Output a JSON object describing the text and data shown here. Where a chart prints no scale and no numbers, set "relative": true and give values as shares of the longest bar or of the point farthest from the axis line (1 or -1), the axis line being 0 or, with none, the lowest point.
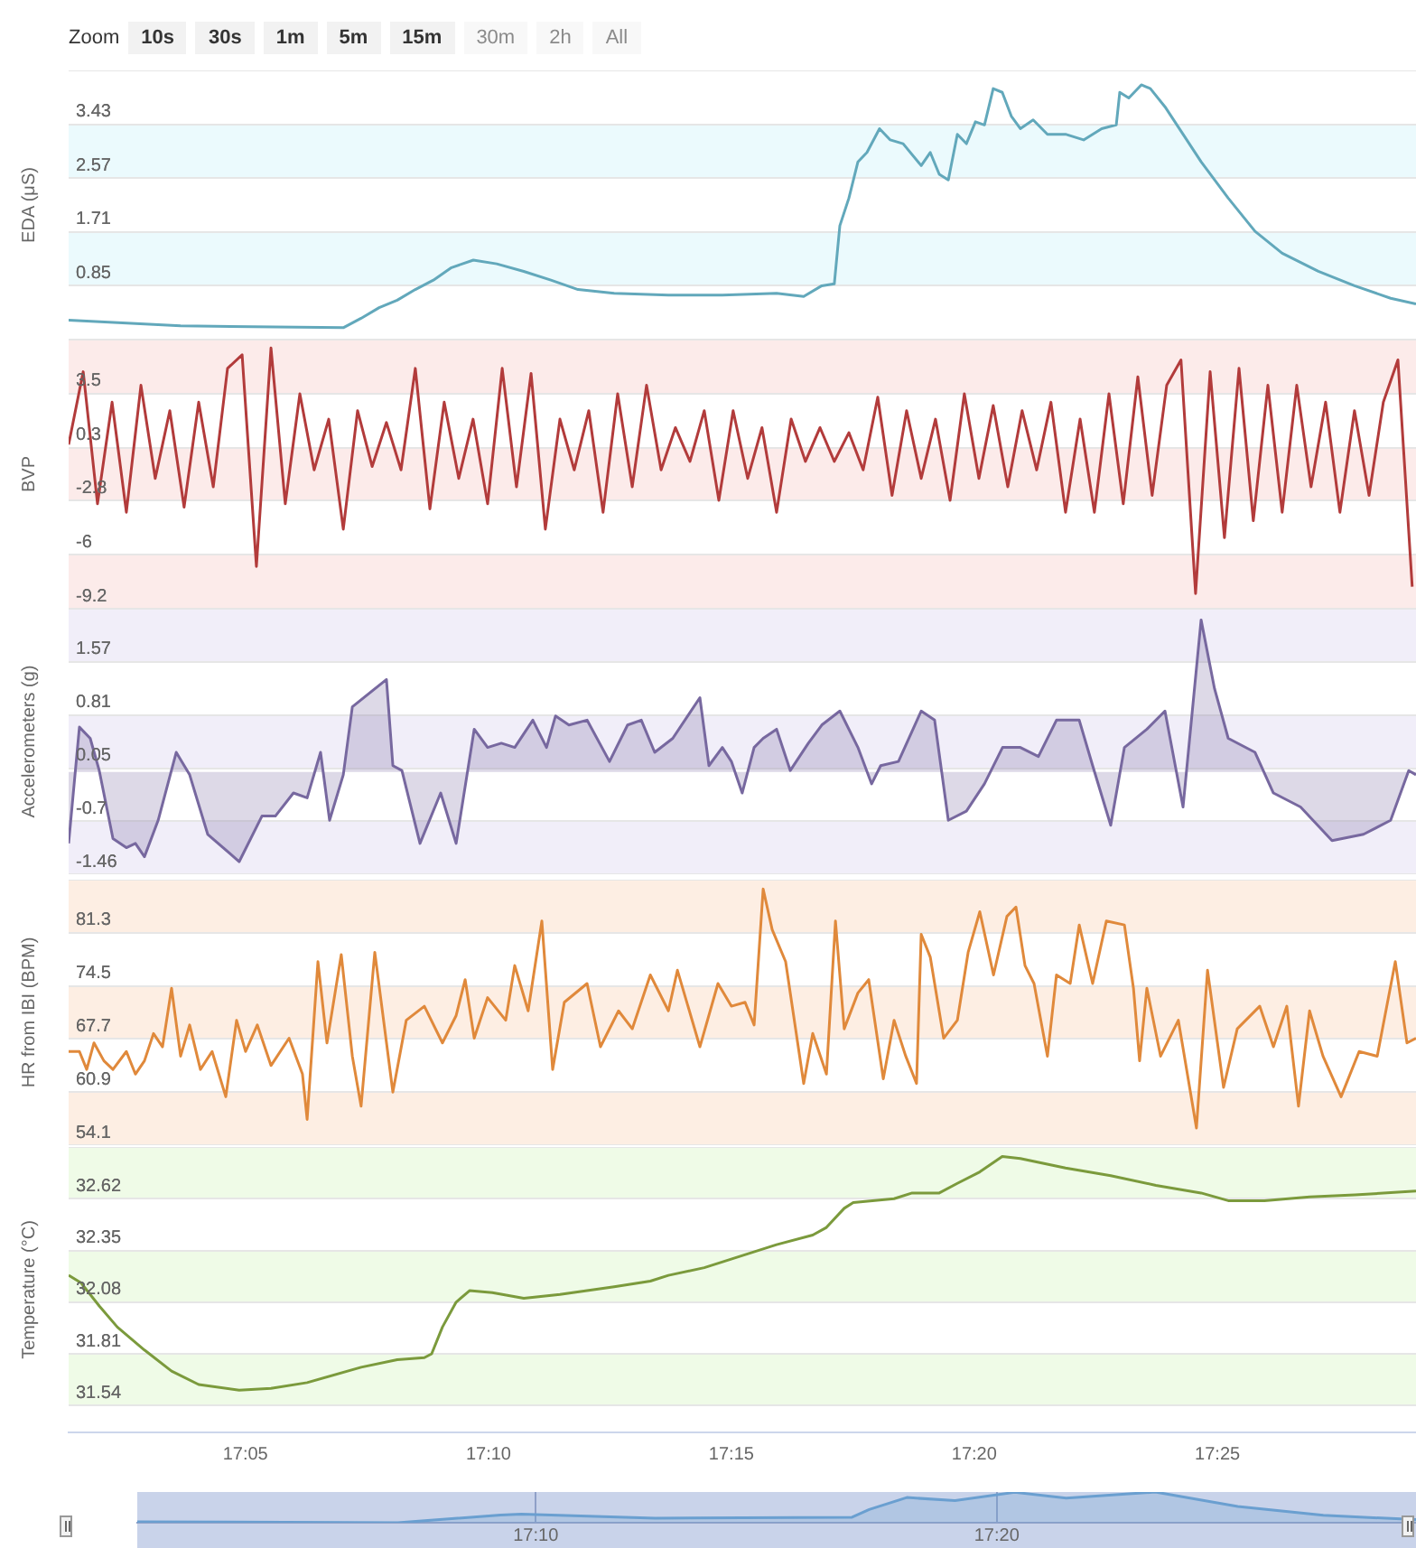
{
  "chart_data": [
    {
      "type": "line",
      "ylabel": "EDA (μS)",
      "annotations": [
        "Zoom",
        "10s",
        "30s",
        "1m",
        "5m",
        "15m",
        "30m",
        "2h",
        "All"
      ],
      "color": "#62a8bb",
      "marker": "none",
      "grid": "y",
      "tick_labels": "y",
      "xlim": [
        17.0227,
        17.4848
      ],
      "ylim": [
        -0.01,
        4.29
      ],
      "yticks": [
        {
          "value": -0.01,
          "label": null
        },
        0.85,
        1.71,
        2.57,
        3.43,
        {
          "value": 4.29,
          "label": null
        }
      ],
      "bands": [
        {
          "axis": "y",
          "from": 0.85,
          "to": 1.71,
          "color": "#ebfafd"
        },
        {
          "axis": "y",
          "from": 2.57,
          "to": 3.43,
          "color": "#ebfafd"
        }
      ],
      "x": [
        17.0227,
        17.0611,
        17.1169,
        17.123,
        17.1292,
        17.1354,
        17.1416,
        17.1478,
        17.154,
        17.1615,
        17.1695,
        17.1788,
        17.1881,
        17.1974,
        17.2098,
        17.2284,
        17.2469,
        17.2655,
        17.2748,
        17.281,
        17.2853,
        17.2872,
        17.2903,
        17.2934,
        17.2965,
        17.3008,
        17.3045,
        17.3089,
        17.3151,
        17.3182,
        17.3213,
        17.3244,
        17.3275,
        17.3306,
        17.3337,
        17.3368,
        17.3398,
        17.3429,
        17.346,
        17.3491,
        17.3535,
        17.3584,
        17.3646,
        17.3708,
        17.377,
        17.382,
        17.3832,
        17.3863,
        17.3906,
        17.3937,
        17.3987,
        17.4049,
        17.4111,
        17.4204,
        17.4296,
        17.4389,
        17.4513,
        17.4637,
        17.4761,
        17.4848
      ],
      "values": [
        0.3,
        0.21,
        0.18,
        0.33,
        0.5,
        0.62,
        0.79,
        0.94,
        1.14,
        1.26,
        1.2,
        1.08,
        0.94,
        0.79,
        0.73,
        0.7,
        0.7,
        0.73,
        0.68,
        0.85,
        0.88,
        1.81,
        2.25,
        2.83,
        2.98,
        3.36,
        3.18,
        3.12,
        2.77,
        2.98,
        2.63,
        2.54,
        3.27,
        3.12,
        3.47,
        3.42,
        4.0,
        3.94,
        3.56,
        3.36,
        3.5,
        3.27,
        3.27,
        3.18,
        3.36,
        3.42,
        3.94,
        3.85,
        4.06,
        4.0,
        3.71,
        3.27,
        2.83,
        2.25,
        1.72,
        1.37,
        1.08,
        0.85,
        0.65,
        0.56
      ]
    },
    {
      "type": "line",
      "ylabel": "BVP",
      "color": "#b23b3b",
      "marker": "none",
      "grid": "y",
      "tick_labels": "y",
      "xlim": [
        17.0227,
        17.4848
      ],
      "ylim": [
        -9.2,
        6.7
      ],
      "yticks": [
        -9.2,
        -6,
        -2.8,
        0.3,
        3.5,
        {
          "value": 6.7,
          "label": null
        }
      ],
      "bands": [
        {
          "axis": "y",
          "from": 3.5,
          "to": 6.7,
          "color": "#fcebea"
        },
        {
          "axis": "y",
          "from": -2.8,
          "to": 0.3,
          "color": "#fcebea"
        },
        {
          "axis": "y",
          "from": -9.2,
          "to": -6,
          "color": "#fcebea"
        }
      ],
      "x": [
        17.0227,
        17.0277,
        17.0326,
        17.0376,
        17.0425,
        17.0475,
        17.0524,
        17.0574,
        17.0623,
        17.0673,
        17.0723,
        17.0772,
        17.0822,
        17.0871,
        17.0921,
        17.097,
        17.102,
        17.1069,
        17.1119,
        17.1169,
        17.1218,
        17.1268,
        17.1317,
        17.1367,
        17.1416,
        17.1466,
        17.1515,
        17.1565,
        17.1614,
        17.1664,
        17.1714,
        17.1763,
        17.1813,
        17.1862,
        17.1912,
        17.1961,
        17.2011,
        17.206,
        17.211,
        17.216,
        17.2209,
        17.2259,
        17.2308,
        17.2358,
        17.2407,
        17.2457,
        17.2506,
        17.2556,
        17.2605,
        17.2655,
        17.2705,
        17.2754,
        17.2804,
        17.2853,
        17.2903,
        17.2952,
        17.3002,
        17.3051,
        17.3101,
        17.3151,
        17.32,
        17.325,
        17.3299,
        17.3349,
        17.3398,
        17.3448,
        17.3497,
        17.3547,
        17.3596,
        17.3646,
        17.3696,
        17.3745,
        17.3795,
        17.3844,
        17.3894,
        17.3943,
        17.3993,
        17.4042,
        17.4092,
        17.4142,
        17.4191,
        17.4241,
        17.429,
        17.434,
        17.4389,
        17.4439,
        17.4488,
        17.4538,
        17.4587,
        17.4637,
        17.4687,
        17.4736,
        17.4786,
        17.4835
      ],
      "values": [
        0.5,
        4.8,
        -3.0,
        3.0,
        -3.5,
        4.0,
        -1.5,
        2.5,
        -3.2,
        3.0,
        -2.0,
        5.0,
        5.8,
        -6.7,
        6.2,
        -3.0,
        3.5,
        -1.0,
        2.0,
        -4.5,
        2.5,
        -0.8,
        1.8,
        -1.0,
        5.0,
        -3.3,
        3.0,
        -1.5,
        2.0,
        -3.0,
        5.0,
        -2.0,
        4.7,
        -4.5,
        2.0,
        -1.0,
        2.5,
        -3.5,
        3.5,
        -2.0,
        4.0,
        -1.0,
        1.5,
        -0.5,
        2.5,
        -2.8,
        2.5,
        -1.5,
        1.5,
        -3.5,
        2.0,
        -0.5,
        1.5,
        -0.5,
        1.2,
        -1.0,
        3.3,
        -2.5,
        2.5,
        -1.5,
        2.0,
        -2.8,
        3.5,
        -1.5,
        2.8,
        -2.0,
        2.5,
        -1.0,
        3.0,
        -3.5,
        2.0,
        -3.5,
        3.5,
        -3.0,
        4.5,
        -2.5,
        4.0,
        5.5,
        -8.3,
        4.8,
        -5.0,
        5.0,
        -4.0,
        4.0,
        -3.5,
        4.0,
        -2.0,
        3.0,
        -3.5,
        2.5,
        -2.5,
        3.0,
        5.5,
        -7.9
      ]
    },
    {
      "type": "area",
      "ylabel": "Accelerometers (g)",
      "color": "#77689f",
      "marker": "none",
      "grid": "y",
      "tick_labels": "y",
      "xlim": [
        17.0227,
        17.4848
      ],
      "ylim": [
        -1.46,
        2.33
      ],
      "yticks": [
        -1.46,
        -0.7,
        0.05,
        0.81,
        1.57,
        {
          "value": 2.33,
          "label": null
        }
      ],
      "bands": [
        {
          "axis": "y",
          "from": 1.57,
          "to": 2.33,
          "color": "#f1eef9"
        },
        {
          "axis": "y",
          "from": 0.05,
          "to": 0.81,
          "color": "#f1eef9"
        },
        {
          "axis": "y",
          "from": -1.46,
          "to": -0.7,
          "color": "#f1eef9"
        }
      ],
      "x": [
        17.0227,
        17.0264,
        17.0301,
        17.0332,
        17.0379,
        17.0425,
        17.0456,
        17.0487,
        17.0534,
        17.0596,
        17.0642,
        17.0704,
        17.0812,
        17.089,
        17.0936,
        17.0998,
        17.1045,
        17.1091,
        17.1122,
        17.1169,
        17.12,
        17.1317,
        17.1339,
        17.137,
        17.1432,
        17.1503,
        17.1556,
        17.1618,
        17.1664,
        17.1711,
        17.1757,
        17.1819,
        17.1866,
        17.1897,
        17.1943,
        17.2005,
        17.2082,
        17.2144,
        17.2191,
        17.2237,
        17.2299,
        17.2392,
        17.2423,
        17.2469,
        17.25,
        17.2537,
        17.2578,
        17.2609,
        17.2655,
        17.2702,
        17.2764,
        17.281,
        17.2872,
        17.2934,
        17.2981,
        17.3012,
        17.3073,
        17.3151,
        17.3197,
        17.3244,
        17.3306,
        17.3368,
        17.343,
        17.3491,
        17.3553,
        17.3615,
        17.3693,
        17.3739,
        17.3801,
        17.3848,
        17.3925,
        17.3987,
        17.4049,
        17.4111,
        17.4157,
        17.4204,
        17.4296,
        17.4359,
        17.4452,
        17.456,
        17.4668,
        17.4761,
        17.4823,
        17.4848
      ],
      "values": [
        -1.02,
        0.64,
        0.48,
        0.02,
        -0.95,
        -1.08,
        -1.02,
        -1.21,
        -0.69,
        0.28,
        -0.04,
        -0.89,
        -1.28,
        -0.63,
        -0.63,
        -0.3,
        -0.37,
        0.28,
        -0.69,
        -0.04,
        0.93,
        1.32,
        0.09,
        0.02,
        -1.02,
        -0.3,
        -1.02,
        0.61,
        0.35,
        0.41,
        0.35,
        0.74,
        0.35,
        0.8,
        0.67,
        0.74,
        0.15,
        0.67,
        0.74,
        0.28,
        0.48,
        1.06,
        0.09,
        0.35,
        0.15,
        -0.3,
        0.35,
        0.48,
        0.61,
        0.02,
        0.41,
        0.67,
        0.87,
        0.35,
        -0.17,
        0.09,
        0.15,
        0.87,
        0.74,
        -0.69,
        -0.56,
        -0.17,
        0.35,
        0.35,
        0.22,
        0.74,
        0.74,
        0.09,
        -0.76,
        0.35,
        0.61,
        0.87,
        -0.5,
        2.17,
        1.19,
        0.48,
        0.28,
        -0.3,
        -0.5,
        -0.98,
        -0.89,
        -0.69,
        0.02,
        -0.04
      ]
    },
    {
      "type": "line",
      "ylabel": "HR from IBI (BPM)",
      "color": "#e0893b",
      "marker": "none",
      "grid": "y",
      "tick_labels": "y",
      "xlim": [
        17.0227,
        17.4848
      ],
      "ylim": [
        54.1,
        88.1
      ],
      "yticks": [
        54.1,
        60.9,
        67.7,
        74.5,
        81.3,
        {
          "value": 88.1,
          "label": null
        }
      ],
      "bands": [
        {
          "axis": "y",
          "from": 81.3,
          "to": 88.1,
          "color": "#fdeee3"
        },
        {
          "axis": "y",
          "from": 67.7,
          "to": 74.5,
          "color": "#fdeee3"
        },
        {
          "axis": "y",
          "from": 54.1,
          "to": 60.9,
          "color": "#fdeee3"
        }
      ],
      "x": [
        17.0227,
        17.0264,
        17.0289,
        17.0314,
        17.0348,
        17.0379,
        17.0425,
        17.0456,
        17.0487,
        17.0518,
        17.0549,
        17.058,
        17.0611,
        17.0642,
        17.0679,
        17.0719,
        17.0766,
        17.0803,
        17.0834,
        17.0874,
        17.0921,
        17.0983,
        17.1029,
        17.1045,
        17.1082,
        17.1113,
        17.1162,
        17.12,
        17.123,
        17.1277,
        17.1339,
        17.1385,
        17.1447,
        17.1509,
        17.1556,
        17.1587,
        17.1618,
        17.1664,
        17.1726,
        17.1757,
        17.1803,
        17.185,
        17.1887,
        17.1927,
        17.2005,
        17.2051,
        17.2113,
        17.216,
        17.2222,
        17.2284,
        17.2315,
        17.2392,
        17.2454,
        17.25,
        17.2547,
        17.2578,
        17.2609,
        17.264,
        17.2686,
        17.2748,
        17.2779,
        17.2826,
        17.2857,
        17.2887,
        17.2934,
        17.2971,
        17.3021,
        17.3058,
        17.3098,
        17.3135,
        17.3151,
        17.3182,
        17.3228,
        17.3275,
        17.3312,
        17.3352,
        17.3399,
        17.3445,
        17.3476,
        17.3507,
        17.3538,
        17.3584,
        17.3615,
        17.3662,
        17.3693,
        17.3739,
        17.3786,
        17.3848,
        17.3879,
        17.39,
        17.3925,
        17.3972,
        17.4033,
        17.4095,
        17.4133,
        17.4188,
        17.4235,
        17.4312,
        17.4359,
        17.4405,
        17.4445,
        17.4483,
        17.4529,
        17.4591,
        17.4653,
        17.4715,
        17.4777,
        17.4817,
        17.4848
      ],
      "values": [
        66.1,
        66.1,
        63.8,
        67.2,
        64.9,
        63.8,
        66.1,
        63.2,
        64.9,
        68.4,
        66.7,
        74.2,
        65.5,
        69.5,
        63.8,
        66.1,
        60.3,
        70.1,
        66.1,
        69.5,
        64.3,
        67.8,
        63.2,
        57.4,
        77.6,
        67.2,
        78.5,
        65.5,
        59.1,
        78.8,
        60.9,
        70.1,
        71.9,
        67.2,
        70.7,
        75.3,
        67.8,
        73.0,
        70.1,
        77.1,
        71.3,
        82.8,
        63.8,
        72.4,
        74.8,
        66.7,
        71.3,
        69.0,
        75.9,
        71.3,
        76.5,
        66.7,
        74.8,
        71.9,
        72.4,
        69.5,
        86.9,
        81.7,
        77.6,
        62.0,
        68.4,
        63.2,
        82.8,
        69.0,
        73.6,
        75.3,
        62.6,
        70.1,
        65.5,
        62.0,
        81.1,
        78.2,
        67.8,
        70.1,
        78.8,
        84.0,
        75.9,
        83.4,
        84.6,
        77.1,
        74.8,
        65.5,
        75.9,
        74.8,
        82.3,
        74.8,
        82.8,
        82.3,
        74.2,
        64.9,
        74.2,
        65.5,
        70.1,
        56.3,
        76.5,
        61.5,
        69.0,
        71.9,
        66.7,
        71.9,
        59.1,
        71.3,
        65.5,
        60.3,
        66.1,
        65.5,
        77.6,
        67.2,
        67.8
      ]
    },
    {
      "type": "line",
      "ylabel": "Temperature (°C)",
      "color": "#7b9a3c",
      "marker": "none",
      "grid": "y",
      "xlim": [
        17.0227,
        17.4848
      ],
      "xticks": [
        {
          "value": 17.0833,
          "label": "17:05"
        },
        {
          "value": 17.1667,
          "label": "17:10"
        },
        {
          "value": 17.25,
          "label": "17:15"
        },
        {
          "value": 17.3333,
          "label": "17:20"
        },
        {
          "value": 17.4167,
          "label": "17:25"
        }
      ],
      "ylim": [
        31.4,
        32.89
      ],
      "yticks": [
        31.54,
        31.81,
        32.08,
        32.35,
        32.62,
        {
          "value": 32.89,
          "label": null
        }
      ],
      "bands": [
        {
          "axis": "y",
          "from": 32.62,
          "to": 32.89,
          "color": "#effbe7"
        },
        {
          "axis": "y",
          "from": 32.08,
          "to": 32.35,
          "color": "#effbe7"
        },
        {
          "axis": "y",
          "from": 31.54,
          "to": 31.81,
          "color": "#effbe7"
        }
      ],
      "x": [
        17.0227,
        17.027,
        17.0332,
        17.0394,
        17.0487,
        17.058,
        17.0673,
        17.0812,
        17.0921,
        17.1045,
        17.123,
        17.1354,
        17.1447,
        17.1472,
        17.1509,
        17.1556,
        17.1602,
        17.168,
        17.1788,
        17.1912,
        17.2098,
        17.2222,
        17.2284,
        17.2407,
        17.2531,
        17.2655,
        17.2779,
        17.2826,
        17.2887,
        17.2918,
        17.3058,
        17.312,
        17.3213,
        17.3275,
        17.3352,
        17.3429,
        17.3491,
        17.3646,
        17.3801,
        17.3956,
        17.4111,
        17.4204,
        17.4328,
        17.4483,
        17.4638,
        17.4848
      ],
      "values": [
        32.22,
        32.18,
        32.06,
        31.95,
        31.83,
        31.72,
        31.65,
        31.62,
        31.63,
        31.66,
        31.74,
        31.78,
        31.79,
        31.81,
        31.95,
        32.08,
        32.14,
        32.13,
        32.1,
        32.12,
        32.16,
        32.19,
        32.22,
        32.26,
        32.32,
        32.38,
        32.43,
        32.47,
        32.57,
        32.6,
        32.62,
        32.65,
        32.65,
        32.7,
        32.76,
        32.84,
        32.83,
        32.78,
        32.74,
        32.69,
        32.65,
        32.61,
        32.61,
        32.63,
        32.64,
        32.66
      ]
    },
    {
      "type": "area",
      "relative": true,
      "color": "#6a9fd0",
      "marker": "none",
      "grid": "x",
      "tick_labels": "x",
      "xlim": [
        17.0227,
        17.4848
      ],
      "xticks": [
        {
          "value": 17.1667,
          "label": "17:10"
        },
        {
          "value": 17.3333,
          "label": "17:20"
        }
      ],
      "x": [
        17.0227,
        17.1169,
        17.154,
        17.1615,
        17.2098,
        17.281,
        17.2872,
        17.3008,
        17.3182,
        17.3398,
        17.3584,
        17.3906,
        17.4204,
        17.4513,
        17.4848
      ],
      "values": [
        0.03,
        0,
        0.25,
        0.28,
        0.15,
        0.18,
        0.43,
        0.82,
        0.72,
        0.99,
        0.8,
        1,
        0.53,
        0.24,
        0.1
      ]
    }
  ]
}
